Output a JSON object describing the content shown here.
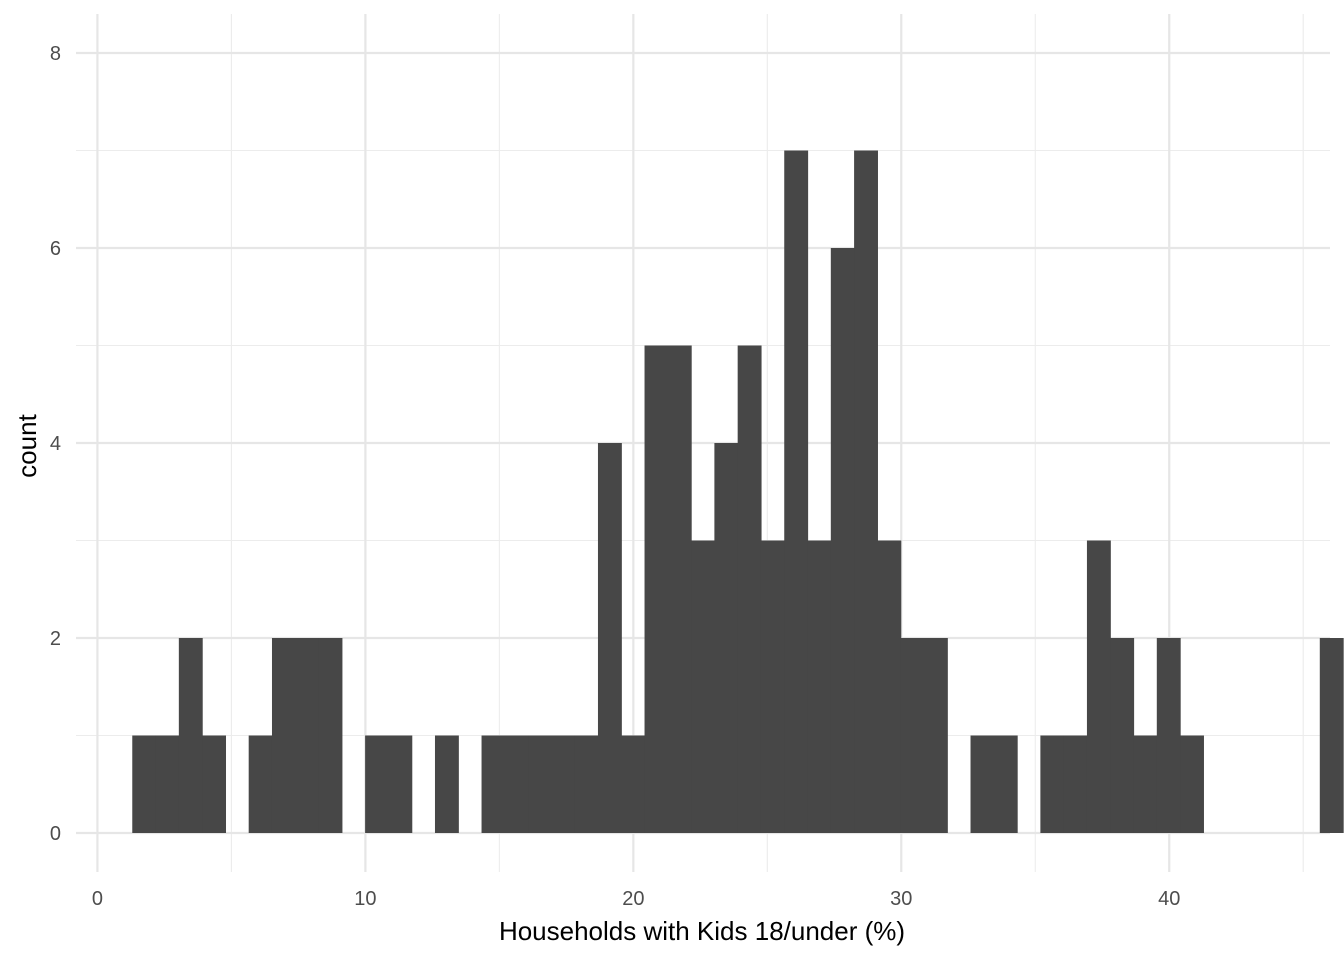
{
  "chart_data": {
    "type": "bar",
    "subtype": "histogram",
    "xlabel": "Households with Kids 18/under (%)",
    "ylabel": "count",
    "xlim": [
      -0.8,
      46.0
    ],
    "ylim": [
      -0.4,
      8.4
    ],
    "x_ticks": [
      0,
      10,
      20,
      30,
      40
    ],
    "y_ticks": [
      0,
      2,
      4,
      6,
      8
    ],
    "grid": true,
    "bar_color": "#474747",
    "bin_start": 1.3,
    "bin_width": 0.869,
    "counts": [
      1,
      1,
      2,
      1,
      0,
      1,
      2,
      2,
      2,
      0,
      1,
      1,
      0,
      1,
      0,
      1,
      1,
      1,
      1,
      1,
      4,
      1,
      5,
      5,
      3,
      4,
      5,
      3,
      7,
      3,
      6,
      7,
      3,
      2,
      2,
      0,
      1,
      1,
      0,
      1,
      1,
      3,
      2,
      1,
      2,
      1,
      0,
      0,
      0,
      0,
      0,
      2
    ]
  }
}
